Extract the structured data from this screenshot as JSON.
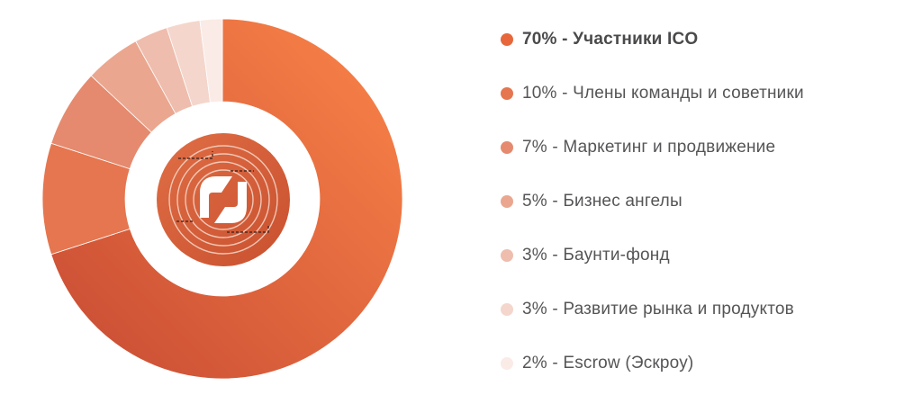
{
  "chart_data": {
    "type": "pie",
    "donut": true,
    "slices": [
      {
        "percent": 70,
        "label_text": "70% - Участники ICO",
        "color": "#e8673a",
        "highlight": true
      },
      {
        "percent": 10,
        "label_text": "10% - Члены команды и советники",
        "color": "#e5764f",
        "highlight": false
      },
      {
        "percent": 7,
        "label_text": "7% - Маркетинг и продвижение",
        "color": "#e58a6e",
        "highlight": false
      },
      {
        "percent": 5,
        "label_text": "5% - Бизнес ангелы",
        "color": "#eba68f",
        "highlight": false
      },
      {
        "percent": 3,
        "label_text": "3% - Баунти-фонд",
        "color": "#efbdad",
        "highlight": false
      },
      {
        "percent": 3,
        "label_text": "3% - Развитие рынка и продуктов",
        "color": "#f4d6cc",
        "highlight": false
      },
      {
        "percent": 2,
        "label_text": "2% - Escrow (Эскроу)",
        "color": "#faebe6",
        "highlight": false
      }
    ],
    "legend_position": "right",
    "center_logo": "brand-logo-icon"
  },
  "colors": {
    "main_gradient_dark": "#c74a33",
    "main_gradient_light": "#fb8549",
    "logo_fill": "#d6643c"
  }
}
